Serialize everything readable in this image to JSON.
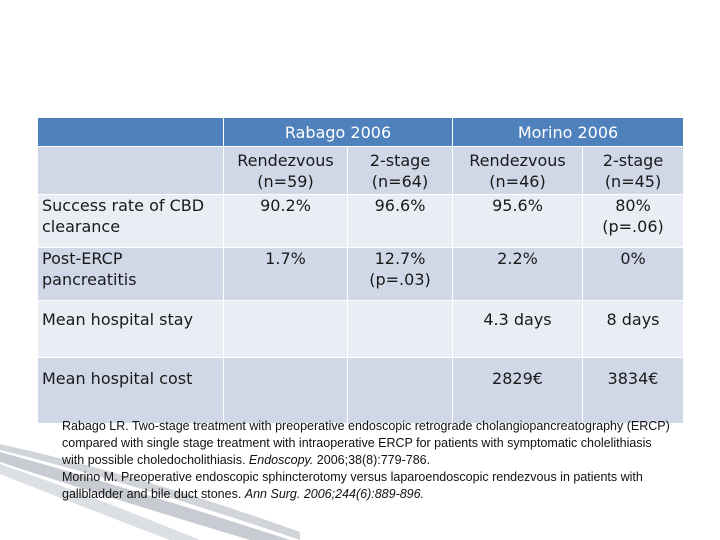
{
  "table": {
    "group_headers": [
      "Rabago 2006",
      "Morino 2006"
    ],
    "sub_headers": [
      "Rendezvous (n=59)",
      "2-stage (n=64)",
      "Rendezvous (n=46)",
      "2-stage (n=45)"
    ],
    "rows": [
      {
        "label": "Success rate of CBD clearance",
        "values": [
          "90.2%",
          "96.6%",
          "95.6%",
          "80% (p=.06)"
        ]
      },
      {
        "label": "Post-ERCP pancreatitis",
        "values": [
          "1.7%",
          "12.7% (p=.03)",
          "2.2%",
          "0%"
        ]
      },
      {
        "label": "Mean hospital stay",
        "values": [
          "",
          "",
          "4.3 days",
          "8 days"
        ]
      },
      {
        "label": "Mean hospital cost",
        "values": [
          "",
          "",
          "2829€",
          "3834€"
        ]
      }
    ]
  },
  "references": {
    "ref1_text": "Rabago LR. Two-stage treatment with preoperative endoscopic retrograde cholangiopancreatography (ERCP) compared with single stage treatment with intraoperative ERCP for patients with symptomatic cholelithiasis with possible choledocholithiasis. ",
    "ref1_journal": "Endoscopy.",
    "ref1_citation": " 2006;38(8):779-786.",
    "ref2_text": "Morino M. Preoperative endoscopic sphincterotomy versus laparoendoscopic rendezvous in patients with gallbladder and bile duct stones. ",
    "ref2_journal": "Ann Surg. 2006;244(6):889-896."
  },
  "colors": {
    "header_blue": "#4f81bd",
    "row_dark": "#d0d8e8",
    "row_light": "#e9edf4"
  }
}
